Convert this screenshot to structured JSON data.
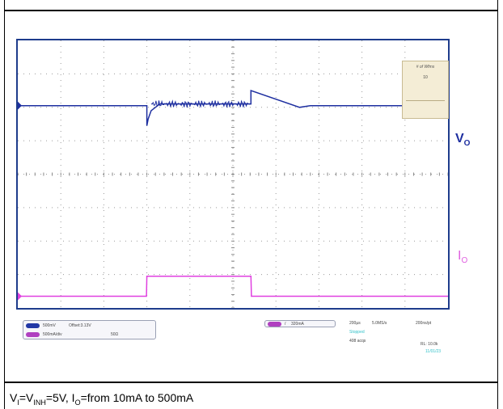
{
  "chart_data": {
    "type": "line",
    "title": "",
    "xlabel": "",
    "ylabel": "",
    "grid": true,
    "divisions": {
      "x": 10,
      "y": 8
    },
    "series": [
      {
        "name": "VO",
        "color": "#1e2fa0",
        "unit": "div",
        "x": [
          0,
          3.0,
          3.0,
          3.03,
          3.1,
          3.2,
          3.3,
          5.42,
          5.42,
          6.55,
          6.8,
          10
        ],
        "y": [
          6.05,
          6.05,
          5.45,
          5.65,
          5.9,
          6.0,
          6.1,
          6.1,
          6.5,
          6.0,
          6.05,
          6.05
        ]
      },
      {
        "name": "IO",
        "color": "#e040e0",
        "unit": "div",
        "x": [
          0,
          2.99,
          3.0,
          5.42,
          5.43,
          10
        ],
        "y": [
          0.35,
          0.35,
          0.95,
          0.95,
          0.35,
          0.35
        ]
      }
    ]
  },
  "scope": {
    "measure_title": "# of Wfms",
    "measure_value": "10",
    "ch1_setting": "500mV",
    "ch1_extra": "Offset:3.13V",
    "ch2_setting": "500mA/div",
    "ch2_impedance": "50Ω",
    "trigger_slope": "/",
    "trigger_level": "320mA",
    "timebase": "200µs",
    "sample_rate": "5.0MS/s",
    "resolution": "200ns/pt",
    "acq_mode": "Stopped",
    "acq_count": "408 acqs",
    "record_length": "RL: 10.0k",
    "date": "11/01/23"
  },
  "channel_labels": {
    "vo_main": "V",
    "vo_sub": "O",
    "io_main": "I",
    "io_sub": "O"
  },
  "caption": {
    "vi": "V",
    "vi_sub": "I",
    "eq1": "=V",
    "inh_sub": "INH",
    "eq2": "=5V, I",
    "io_sub": "O",
    "rest": "=from 10mA to 500mA"
  },
  "colors": {
    "border": "#1e3c8c",
    "ch1": "#1e2fa0",
    "ch2": "#e040e0",
    "acq": "#33c1c9"
  }
}
